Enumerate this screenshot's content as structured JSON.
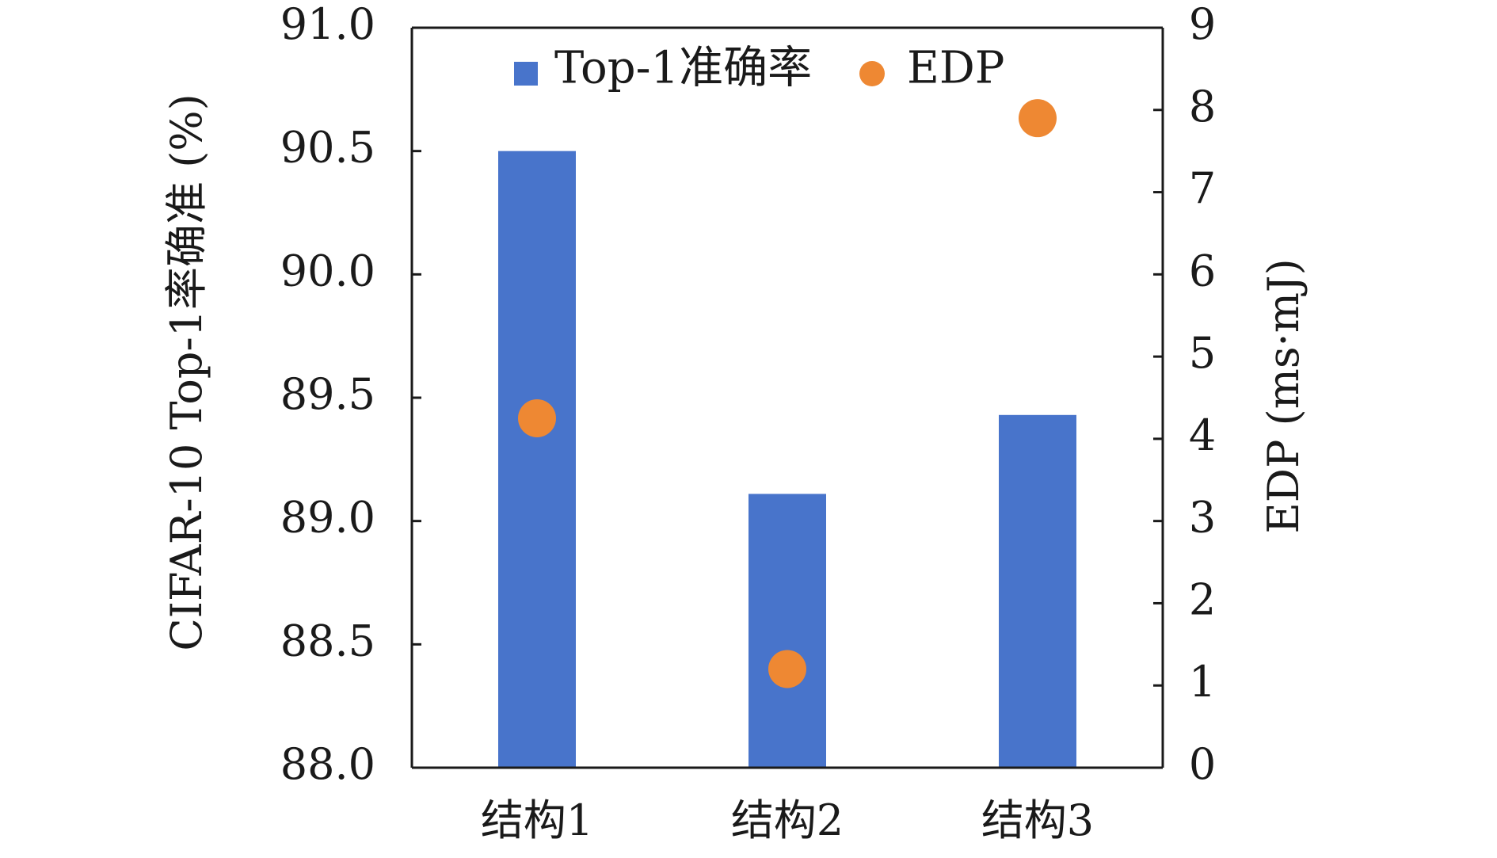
{
  "chart_data": {
    "type": "bar",
    "categories": [
      "结构1",
      "结构2",
      "结构3"
    ],
    "series": [
      {
        "name": "Top-1准确率",
        "kind": "bar",
        "axis": "left",
        "values": [
          90.5,
          89.11,
          89.43
        ]
      },
      {
        "name": "EDP",
        "kind": "scatter",
        "axis": "right",
        "values": [
          4.25,
          1.2,
          7.9
        ]
      }
    ],
    "ylabel": "CIFAR-10 Top-1率确准 (%)",
    "y2label": "EDP (ms·mJ)",
    "xlabel": "",
    "ylim": [
      88.0,
      91.0
    ],
    "y2lim": [
      0,
      9
    ],
    "yticks": [
      "88.0",
      "88.5",
      "89.0",
      "89.5",
      "90.0",
      "90.5",
      "91.0"
    ],
    "y2ticks": [
      "0",
      "1",
      "2",
      "3",
      "4",
      "5",
      "6",
      "7",
      "8",
      "9"
    ],
    "legend": {
      "position": "top-center",
      "entries": [
        "Top-1准确率",
        "EDP"
      ]
    },
    "colors": {
      "bar": "#4874CB",
      "scatter": "#EE8833",
      "axis": "#1a1a1a"
    },
    "grid": false
  }
}
